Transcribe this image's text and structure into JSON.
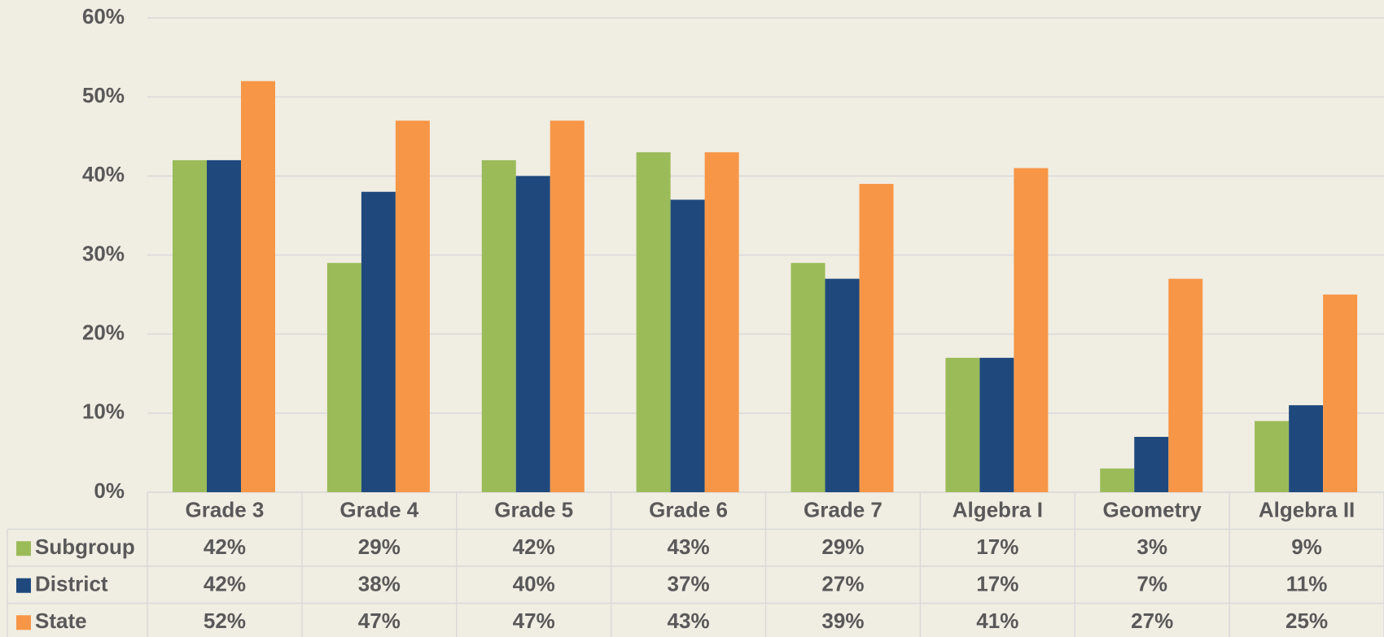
{
  "chart_data": {
    "type": "bar",
    "categories": [
      "Grade 3",
      "Grade 4",
      "Grade 5",
      "Grade 6",
      "Grade 7",
      "Algebra I",
      "Geometry",
      "Algebra II"
    ],
    "series": [
      {
        "name": "Subgroup",
        "color": "#9bbb59",
        "values": [
          42,
          29,
          42,
          43,
          29,
          17,
          3,
          9
        ],
        "value_labels": [
          "42%",
          "29%",
          "42%",
          "43%",
          "29%",
          "17%",
          "3%",
          "9%"
        ]
      },
      {
        "name": "District",
        "color": "#1f497d",
        "values": [
          42,
          38,
          40,
          37,
          27,
          17,
          7,
          11
        ],
        "value_labels": [
          "42%",
          "38%",
          "40%",
          "37%",
          "27%",
          "17%",
          "7%",
          "11%"
        ]
      },
      {
        "name": "State",
        "color": "#f79646",
        "values": [
          52,
          47,
          47,
          43,
          39,
          41,
          27,
          25
        ],
        "value_labels": [
          "52%",
          "47%",
          "47%",
          "43%",
          "39%",
          "41%",
          "27%",
          "25%"
        ]
      }
    ],
    "ylim": [
      0,
      60
    ],
    "yticks": [
      {
        "value": 0,
        "label": "0%"
      },
      {
        "value": 10,
        "label": "10%"
      },
      {
        "value": 20,
        "label": "20%"
      },
      {
        "value": 30,
        "label": "30%"
      },
      {
        "value": 40,
        "label": "40%"
      },
      {
        "value": 50,
        "label": "50%"
      },
      {
        "value": 60,
        "label": "60%"
      }
    ],
    "grid": true
  }
}
